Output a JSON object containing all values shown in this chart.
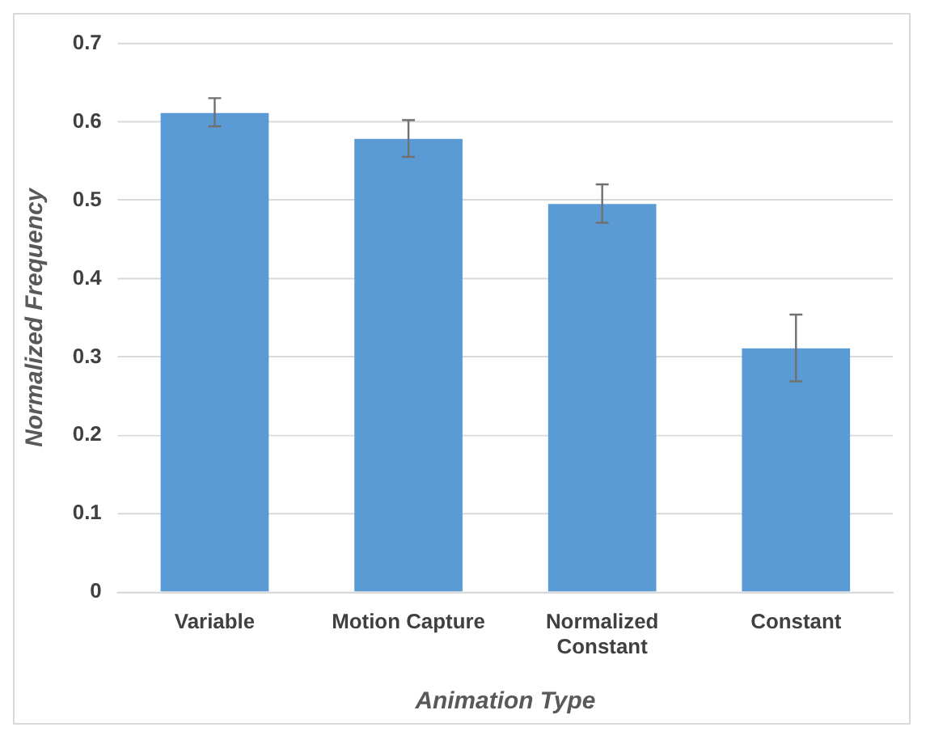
{
  "chart_data": {
    "type": "bar",
    "xlabel": "Animation Type",
    "ylabel": "Normalized Frequency",
    "categories": [
      "Variable",
      "Motion Capture",
      "Normalized Constant",
      "Constant"
    ],
    "values": [
      0.611,
      0.578,
      0.495,
      0.311
    ],
    "errors": [
      [
        0.594,
        0.63
      ],
      [
        0.555,
        0.602
      ],
      [
        0.471,
        0.52
      ],
      [
        0.269,
        0.354
      ]
    ],
    "color": "#5b9bd5",
    "ylim": [
      0,
      0.7
    ],
    "yticks": [
      0,
      0.1,
      0.2,
      0.3,
      0.4,
      0.5,
      0.6,
      0.7
    ],
    "grid": "y"
  }
}
